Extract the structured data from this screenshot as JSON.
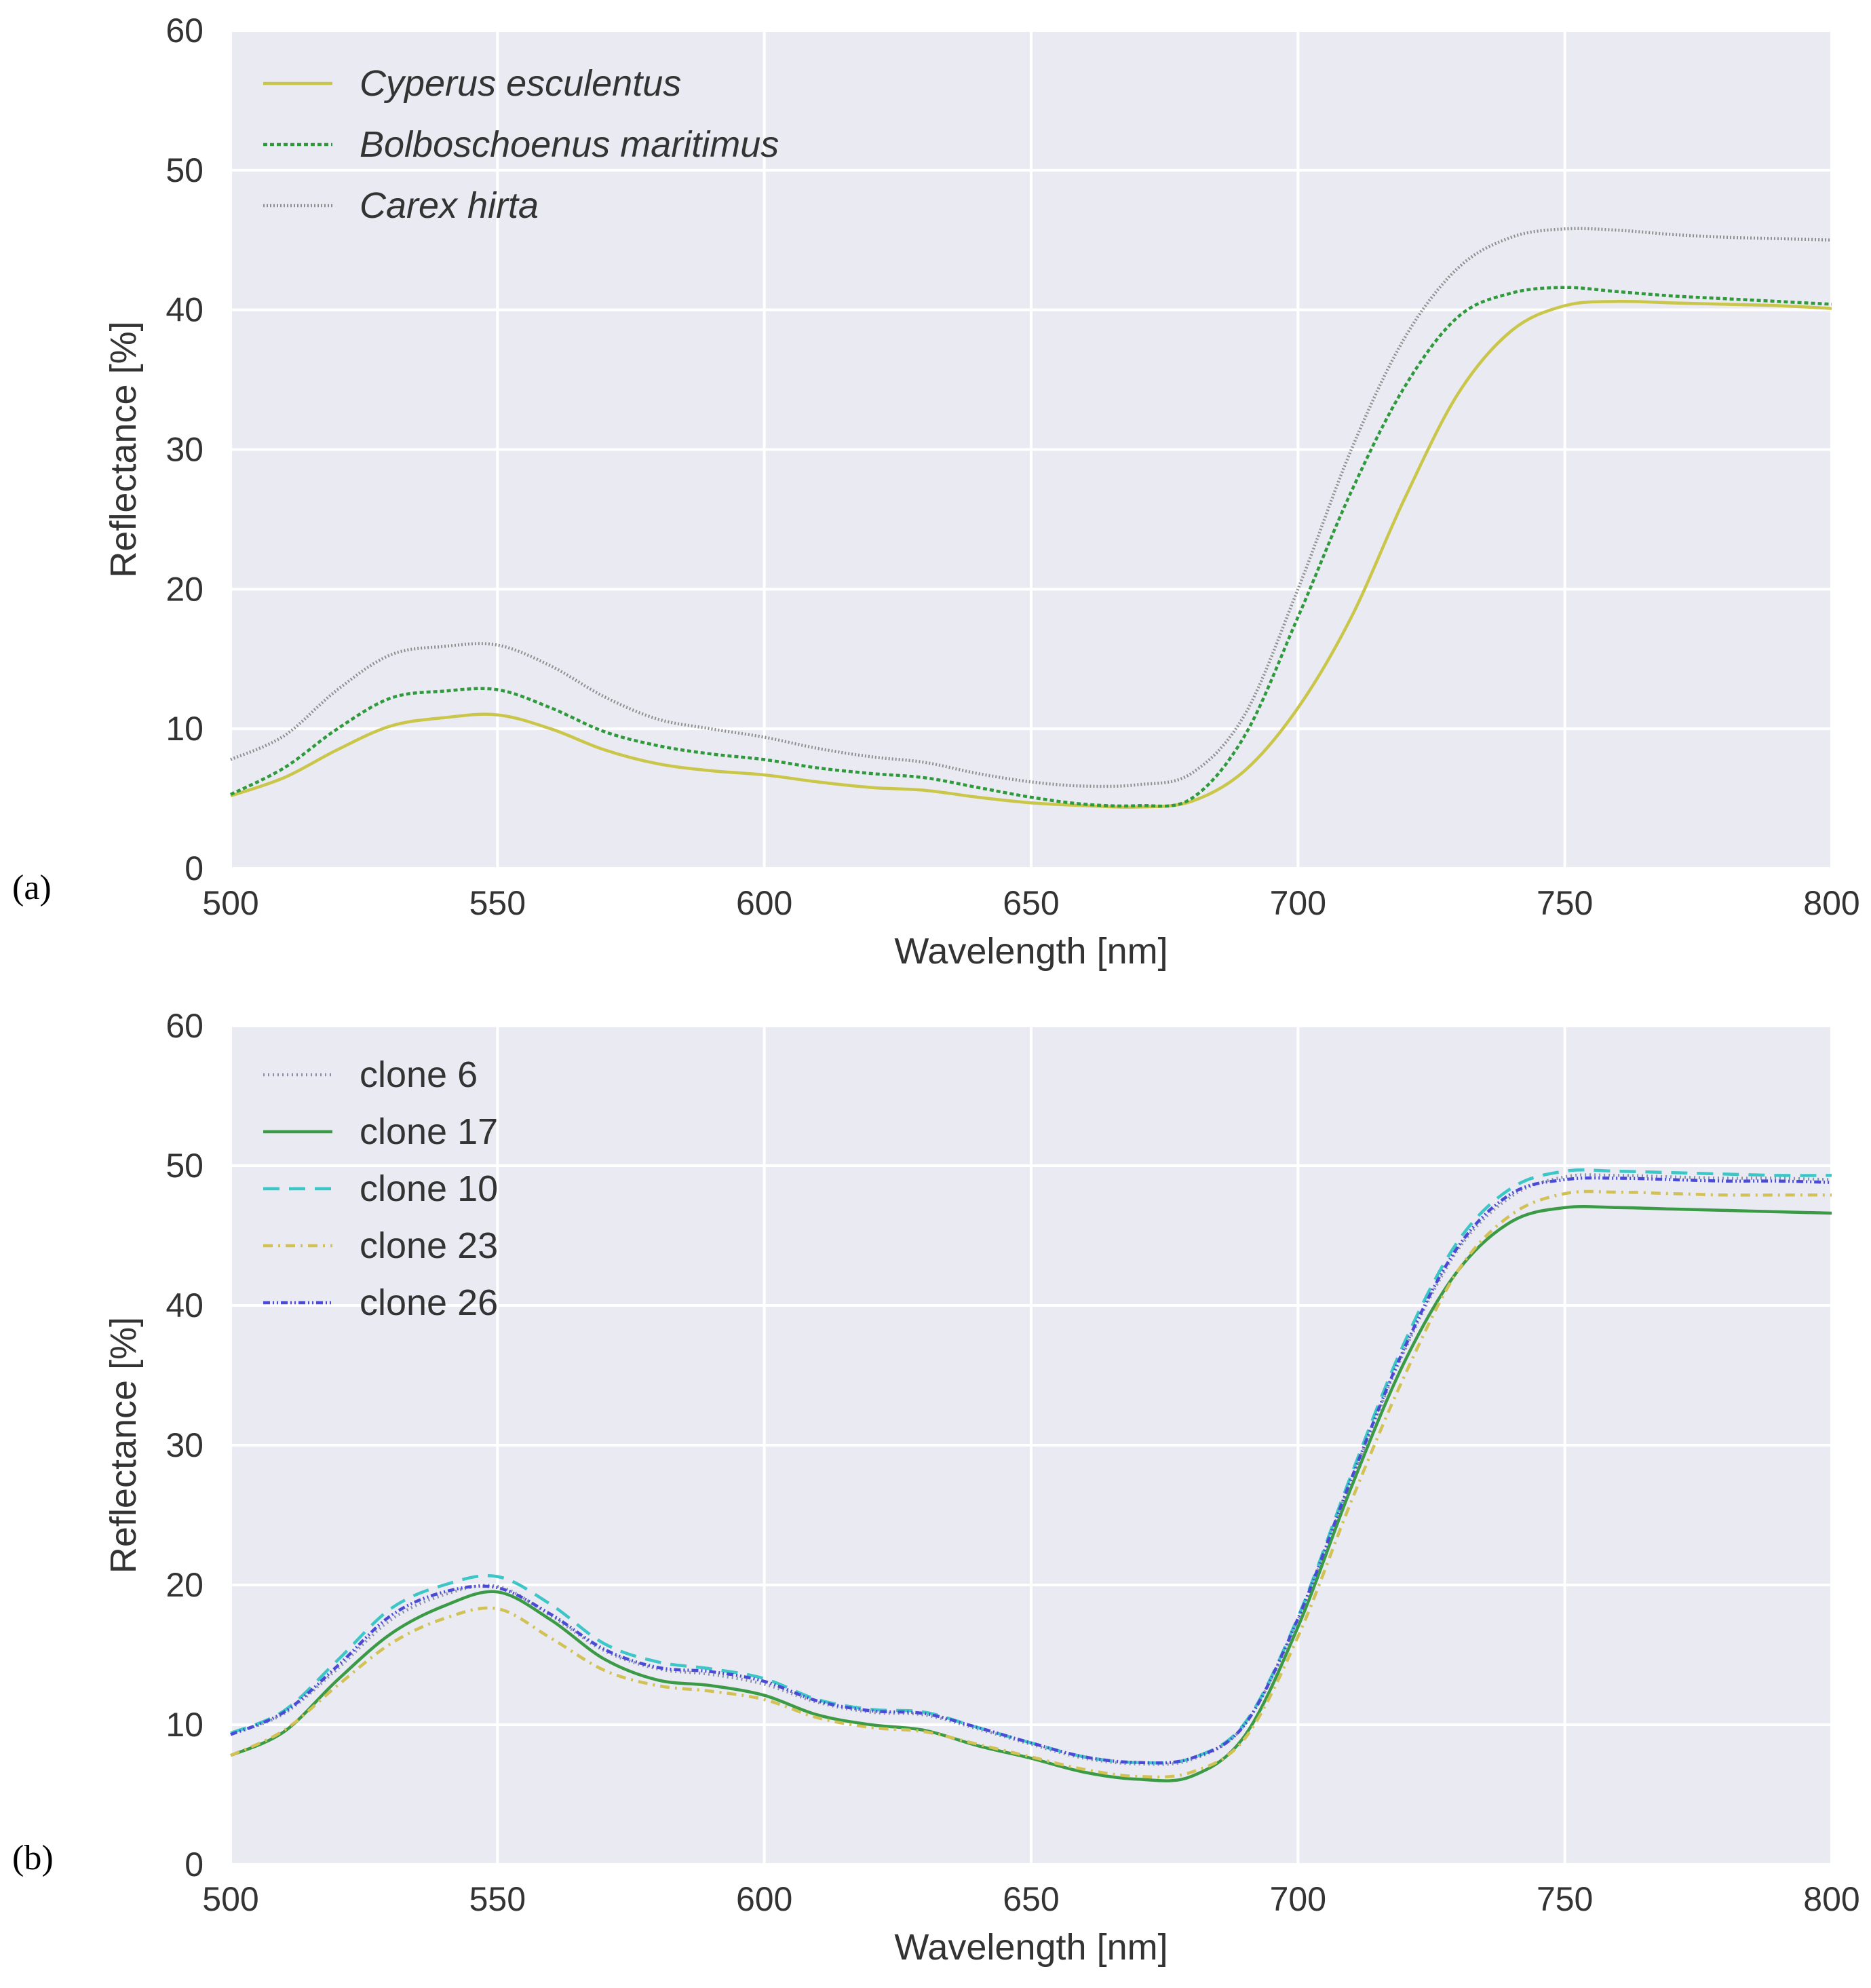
{
  "chart_data": [
    {
      "type": "line",
      "panel_label": "(a)",
      "xlabel": "Wavelength [nm]",
      "ylabel": "Reflectance [%]",
      "xlim": [
        500,
        800
      ],
      "ylim": [
        0,
        60
      ],
      "xticks": [
        500,
        550,
        600,
        650,
        700,
        750,
        800
      ],
      "yticks": [
        0,
        10,
        20,
        30,
        40,
        50,
        60
      ],
      "grid": true,
      "legend_position": "top-left",
      "italic_legend": true,
      "x": [
        500,
        510,
        520,
        530,
        540,
        550,
        560,
        570,
        580,
        590,
        600,
        610,
        620,
        630,
        640,
        650,
        660,
        670,
        680,
        690,
        700,
        710,
        720,
        730,
        740,
        750,
        760,
        770,
        780,
        790,
        800
      ],
      "series": [
        {
          "name": "Cyperus esculentus",
          "color": "#c9c64a",
          "dash": "",
          "values": [
            5.2,
            6.5,
            8.5,
            10.2,
            10.8,
            11.0,
            10.0,
            8.5,
            7.5,
            7.0,
            6.7,
            6.2,
            5.8,
            5.6,
            5.1,
            4.7,
            4.5,
            4.4,
            4.8,
            7.0,
            11.5,
            18.0,
            26.5,
            34.0,
            38.5,
            40.3,
            40.6,
            40.5,
            40.4,
            40.3,
            40.1
          ]
        },
        {
          "name": "Bolboschoenus maritimus",
          "color": "#2e9a3c",
          "dash": "6 4",
          "values": [
            5.3,
            7.2,
            10.0,
            12.2,
            12.7,
            12.8,
            11.5,
            9.8,
            8.8,
            8.2,
            7.8,
            7.2,
            6.8,
            6.5,
            5.8,
            5.1,
            4.6,
            4.5,
            5.0,
            9.5,
            18.0,
            27.0,
            34.5,
            39.5,
            41.2,
            41.6,
            41.3,
            41.0,
            40.8,
            40.6,
            40.4
          ]
        },
        {
          "name": "Carex hirta",
          "color": "#8f8f8f",
          "dash": "2 3",
          "values": [
            7.8,
            9.5,
            12.8,
            15.3,
            15.9,
            16.0,
            14.5,
            12.3,
            10.7,
            10.0,
            9.4,
            8.6,
            8.0,
            7.6,
            6.8,
            6.2,
            5.9,
            6.0,
            6.8,
            11.0,
            20.0,
            30.0,
            38.0,
            43.0,
            45.2,
            45.8,
            45.7,
            45.4,
            45.2,
            45.1,
            45.0
          ]
        }
      ]
    },
    {
      "type": "line",
      "panel_label": "(b)",
      "xlabel": "Wavelength [nm]",
      "ylabel": "Reflectance [%]",
      "xlim": [
        500,
        800
      ],
      "ylim": [
        0,
        60
      ],
      "xticks": [
        500,
        550,
        600,
        650,
        700,
        750,
        800
      ],
      "yticks": [
        0,
        10,
        20,
        30,
        40,
        50,
        60
      ],
      "grid": true,
      "legend_position": "top-left",
      "italic_legend": false,
      "x": [
        500,
        510,
        520,
        530,
        540,
        550,
        560,
        570,
        580,
        590,
        600,
        610,
        620,
        630,
        640,
        650,
        660,
        670,
        680,
        690,
        700,
        710,
        720,
        730,
        740,
        750,
        760,
        770,
        780,
        790,
        800
      ],
      "series": [
        {
          "name": "clone 6",
          "color": "#8a8fa8",
          "dash": "2 5",
          "values": [
            9.3,
            10.8,
            14.0,
            17.5,
            19.3,
            19.9,
            17.8,
            15.3,
            14.0,
            13.6,
            12.9,
            11.6,
            10.9,
            10.7,
            9.7,
            8.6,
            7.6,
            7.2,
            7.5,
            10.0,
            17.5,
            27.5,
            36.8,
            44.0,
            47.8,
            49.2,
            49.3,
            49.2,
            49.1,
            49.1,
            49.0
          ]
        },
        {
          "name": "clone 17",
          "color": "#3a9a45",
          "dash": "",
          "values": [
            7.8,
            9.5,
            13.2,
            16.5,
            18.5,
            19.5,
            17.5,
            14.7,
            13.2,
            12.8,
            12.1,
            10.7,
            10.0,
            9.6,
            8.5,
            7.6,
            6.6,
            6.1,
            6.3,
            9.2,
            17.0,
            27.0,
            36.0,
            42.5,
            46.0,
            47.0,
            47.0,
            46.9,
            46.8,
            46.7,
            46.6
          ]
        },
        {
          "name": "clone 10",
          "color": "#3cc6c6",
          "dash": "24 14",
          "values": [
            9.4,
            11.0,
            14.6,
            18.3,
            20.0,
            20.6,
            18.6,
            15.8,
            14.5,
            14.0,
            13.3,
            11.8,
            11.1,
            10.9,
            9.8,
            8.7,
            7.7,
            7.3,
            7.6,
            10.1,
            17.7,
            27.9,
            37.4,
            44.6,
            48.4,
            49.6,
            49.6,
            49.5,
            49.4,
            49.3,
            49.3
          ]
        },
        {
          "name": "clone 23",
          "color": "#d2c255",
          "dash": "14 8 3 8",
          "values": [
            7.8,
            9.6,
            12.8,
            15.8,
            17.6,
            18.3,
            16.2,
            13.9,
            12.8,
            12.4,
            11.8,
            10.5,
            9.8,
            9.5,
            8.6,
            7.7,
            6.8,
            6.3,
            6.6,
            9.0,
            16.3,
            26.0,
            35.0,
            42.5,
            46.5,
            48.0,
            48.1,
            48.0,
            47.9,
            47.9,
            47.9
          ]
        },
        {
          "name": "clone 26",
          "color": "#4a4ad6",
          "dash": "10 4 2 4 2 4",
          "values": [
            9.3,
            10.9,
            14.2,
            17.8,
            19.5,
            19.8,
            17.9,
            15.4,
            14.1,
            13.8,
            13.1,
            11.7,
            11.0,
            10.8,
            9.8,
            8.7,
            7.7,
            7.3,
            7.6,
            10.0,
            17.6,
            27.6,
            37.0,
            44.2,
            48.0,
            49.0,
            49.1,
            49.0,
            48.9,
            48.9,
            48.8
          ]
        }
      ]
    }
  ]
}
